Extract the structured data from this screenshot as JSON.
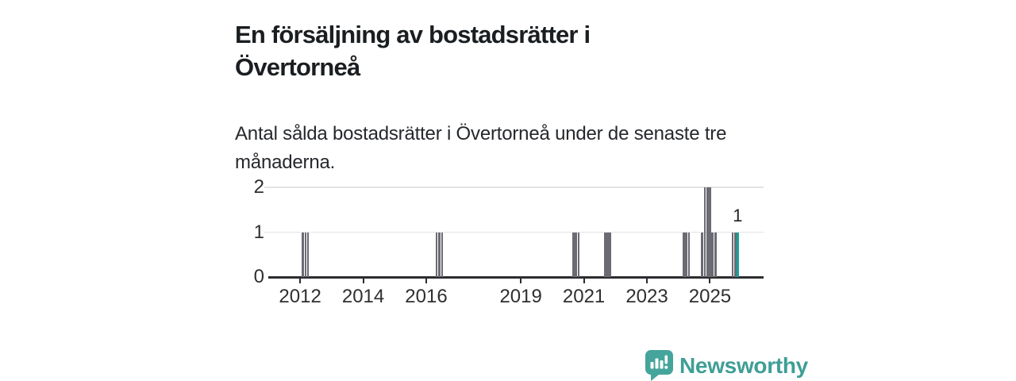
{
  "header": {
    "title": "En försäljning av bostadsrätter i Övertorneå",
    "subtitle": "Antal sålda bostadsrätter i Övertorneå under de senaste tre månaderna."
  },
  "chart_data": {
    "type": "bar",
    "title": "En försäljning av bostadsrätter i Övertorneå",
    "subtitle": "Antal sålda bostadsrätter i Övertorneå under de senaste tre månaderna.",
    "xlabel": "",
    "ylabel": "",
    "xlim": [
      2011.04,
      2026.7
    ],
    "ylim": [
      0,
      2
    ],
    "yticks": [
      0,
      1,
      2
    ],
    "xticks": [
      2012,
      2014,
      2016,
      2019,
      2021,
      2023,
      2025
    ],
    "grid": "horizontal",
    "legend": "none",
    "bar_color": "#6b6b73",
    "highlight_color": "#14a39a",
    "axis_color": "#2d2d31",
    "gridline_color": "#e3e3e3",
    "tick_label_color": "#2f2f2f",
    "bars": [
      {
        "x": 2012.08,
        "value": 1
      },
      {
        "x": 2012.17,
        "value": 1
      },
      {
        "x": 2012.25,
        "value": 1
      },
      {
        "x": 2016.33,
        "value": 1
      },
      {
        "x": 2016.42,
        "value": 1
      },
      {
        "x": 2016.5,
        "value": 1
      },
      {
        "x": 2020.67,
        "value": 1
      },
      {
        "x": 2020.75,
        "value": 1
      },
      {
        "x": 2020.83,
        "value": 1
      },
      {
        "x": 2021.67,
        "value": 1
      },
      {
        "x": 2021.75,
        "value": 1
      },
      {
        "x": 2021.83,
        "value": 1
      },
      {
        "x": 2024.17,
        "value": 1
      },
      {
        "x": 2024.25,
        "value": 1
      },
      {
        "x": 2024.33,
        "value": 1
      },
      {
        "x": 2024.75,
        "value": 1
      },
      {
        "x": 2024.83,
        "value": 2
      },
      {
        "x": 2024.92,
        "value": 2
      },
      {
        "x": 2025.0,
        "value": 2
      },
      {
        "x": 2025.08,
        "value": 1
      },
      {
        "x": 2025.17,
        "value": 1
      },
      {
        "x": 2025.72,
        "value": 1
      },
      {
        "x": 2025.8,
        "value": 1
      },
      {
        "x": 2025.88,
        "value": 1,
        "highlight": true,
        "label": "1"
      }
    ]
  },
  "footer": {
    "brand": "Newsworthy",
    "brand_color": "#3f9e96",
    "icon": "newsworthy-speech-bubble-chart-icon"
  }
}
